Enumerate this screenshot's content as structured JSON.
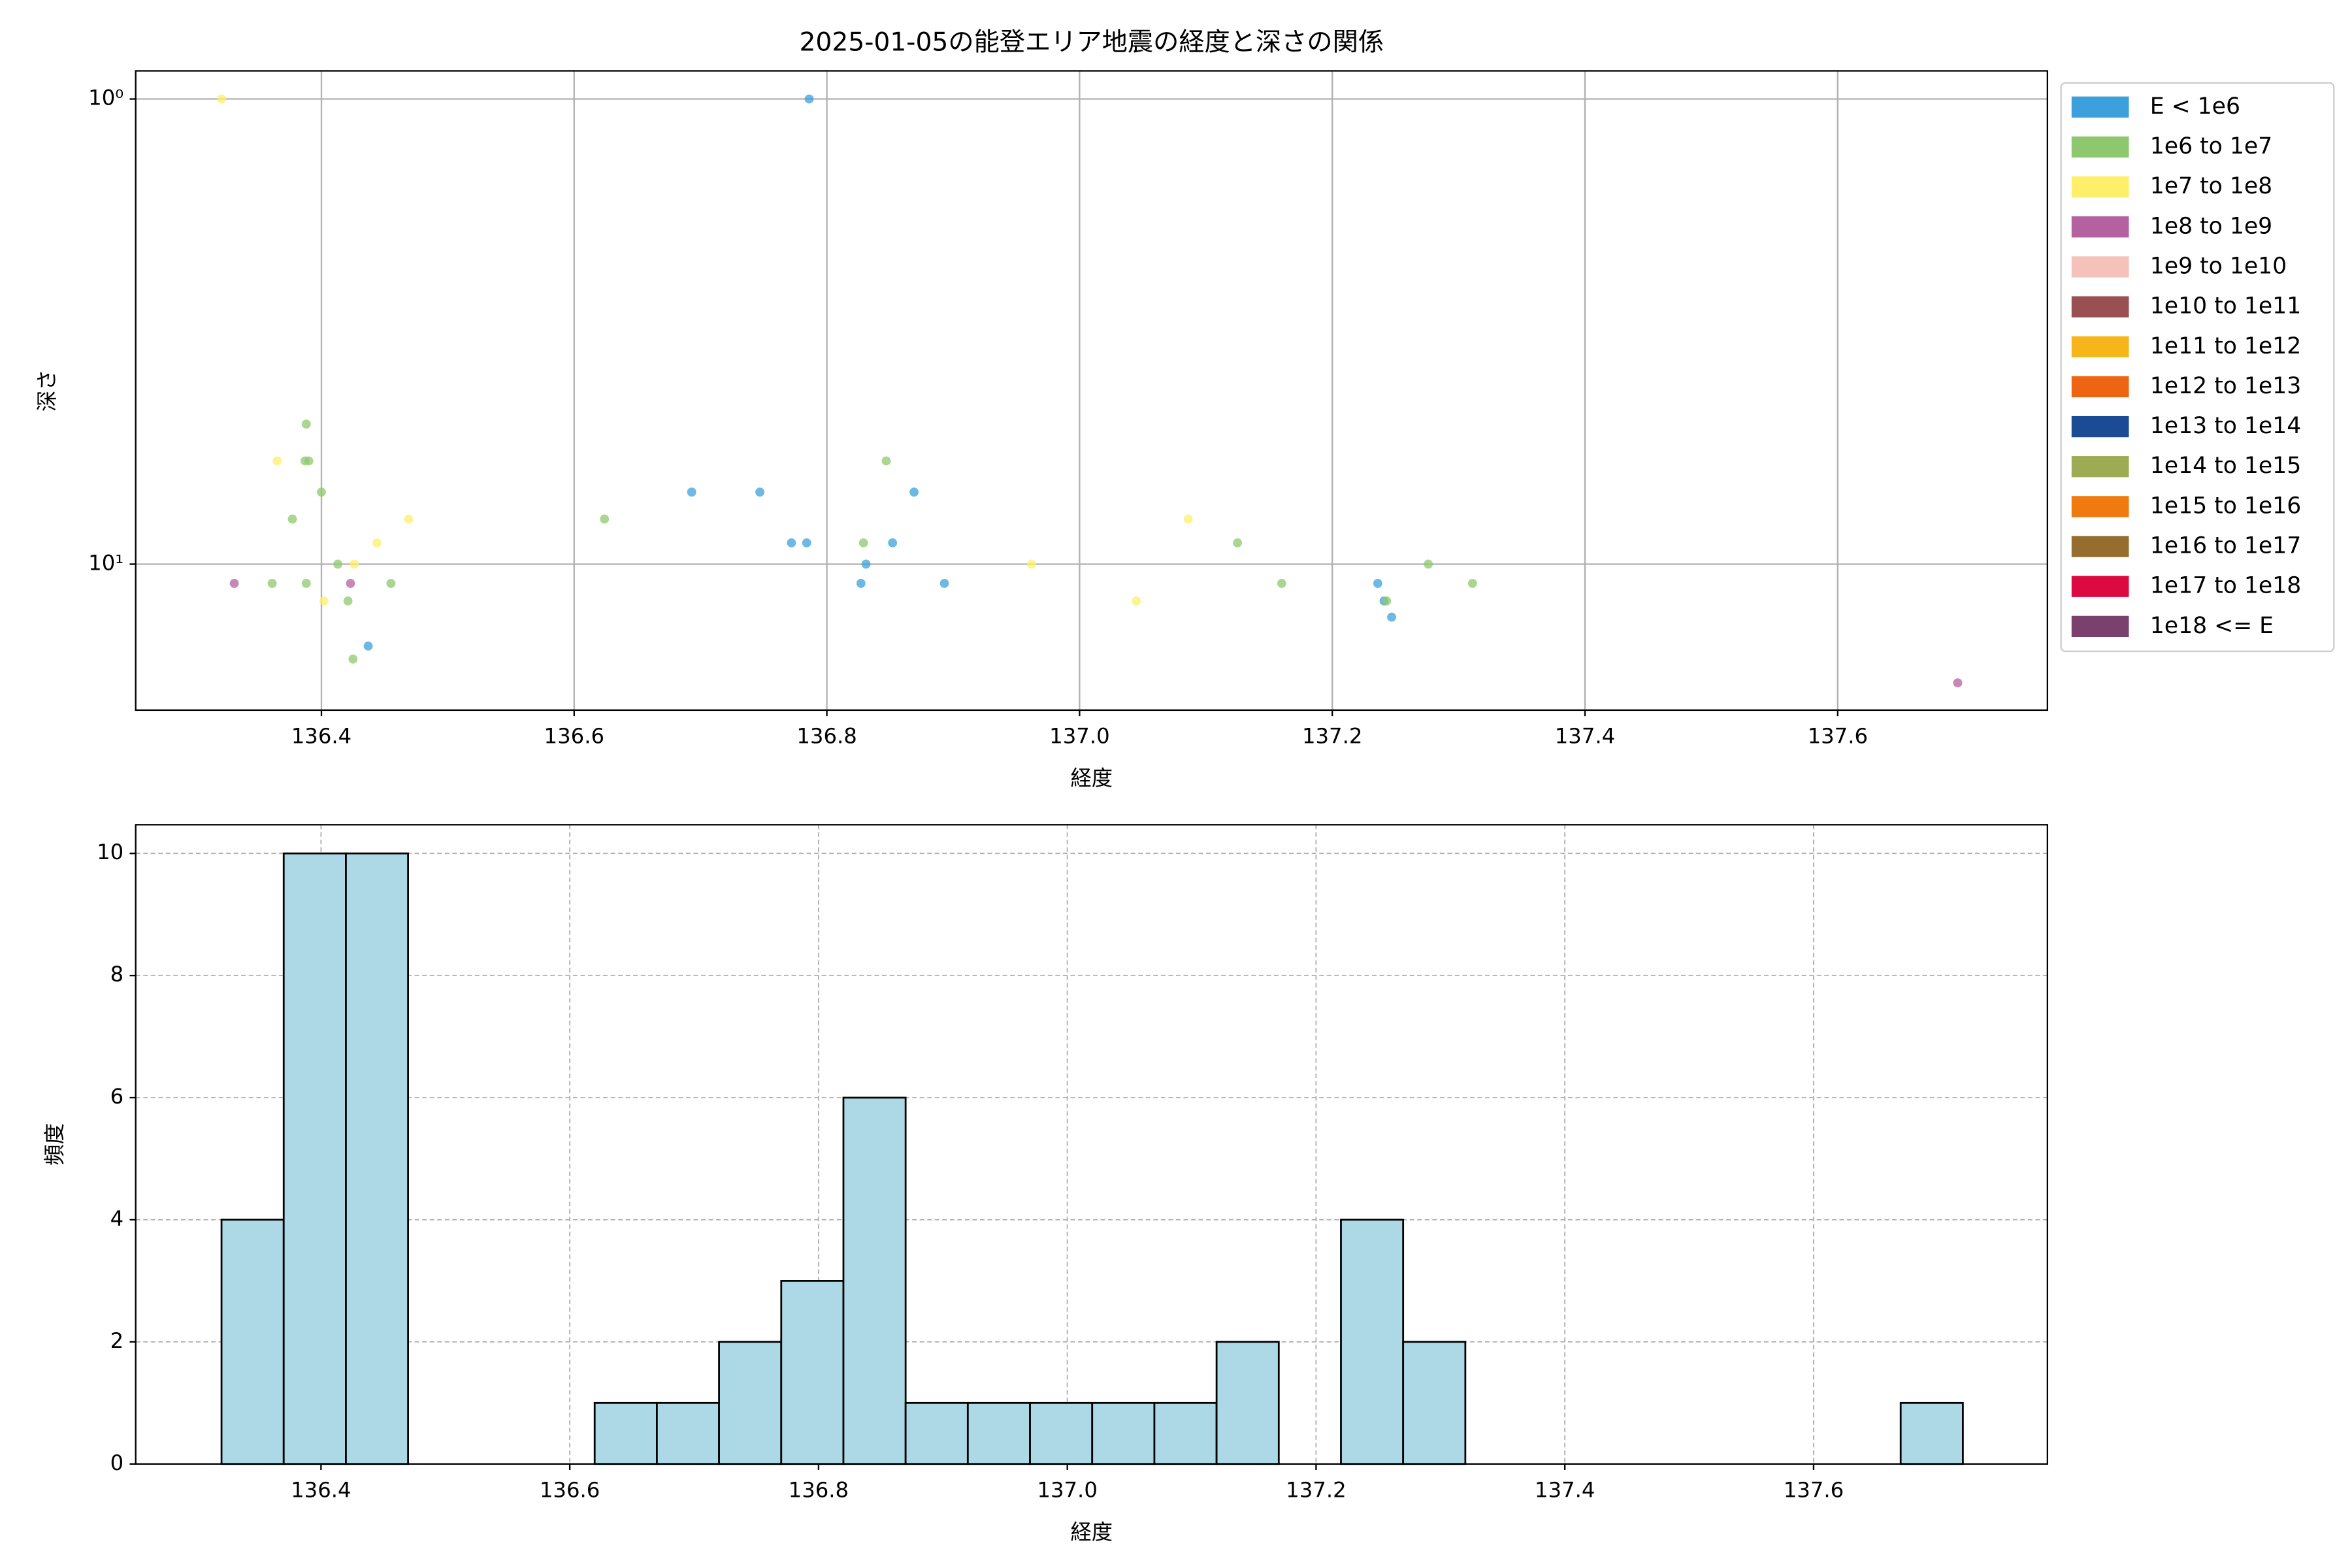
{
  "chart_data": [
    {
      "type": "scatter",
      "title": "2025-01-05の能登エリア地震の経度と深さの関係",
      "xlabel": "経度",
      "ylabel": "深さ",
      "xlim": [
        136.253,
        137.766
      ],
      "xticks": [
        136.4,
        136.6,
        136.8,
        {
          "value": 137,
          "label": "137.0"
        },
        137.2,
        137.4,
        137.6
      ],
      "ylim": [
        0.87,
        20.6
      ],
      "yscale": "log",
      "y_inverted": true,
      "yticks": [
        {
          "value": 1,
          "label": "10⁰"
        },
        {
          "value": 10,
          "label": "10¹"
        }
      ],
      "grid": true,
      "legend": "outside right",
      "series": [
        {
          "name": "E < 1e6",
          "color": "#3ca0dc",
          "x": [
            136.786,
            136.437,
            136.693,
            136.747,
            136.772,
            136.784,
            136.852,
            136.869,
            136.831,
            136.827,
            136.893,
            137.236,
            137.241,
            137.247
          ],
          "y": [
            1,
            15,
            7,
            7,
            9,
            9,
            9,
            7,
            10,
            11,
            11,
            11,
            12,
            13
          ]
        },
        {
          "name": "1e6 to 1e7",
          "color": "#8dc86e",
          "x": [
            136.388,
            136.387,
            136.39,
            136.4,
            136.377,
            136.413,
            136.361,
            136.388,
            136.455,
            136.421,
            136.425,
            136.624,
            136.847,
            136.829,
            137.125,
            137.16,
            137.243,
            137.276,
            137.311
          ],
          "y": [
            5,
            6,
            6,
            7,
            8,
            10,
            11,
            11,
            11,
            12,
            16,
            8,
            6,
            9,
            9,
            11,
            12,
            10,
            11
          ]
        },
        {
          "name": "1e7 to 1e8",
          "color": "#fdef6a",
          "x": [
            136.321,
            136.365,
            136.469,
            136.444,
            136.426,
            136.402,
            136.962,
            137.045,
            137.086
          ],
          "y": [
            1,
            6,
            8,
            9,
            10,
            12,
            10,
            12,
            8
          ]
        },
        {
          "name": "1e8 to 1e9",
          "color": "#b5609f",
          "x": [
            136.331,
            136.423,
            137.695
          ],
          "y": [
            11,
            11,
            18
          ]
        },
        {
          "name": "1e9 to 1e10",
          "color": "#f5c2bb",
          "x": [],
          "y": []
        },
        {
          "name": "1e10 to 1e11",
          "color": "#9a5050",
          "x": [],
          "y": []
        },
        {
          "name": "1e11 to 1e12",
          "color": "#f6b51a",
          "x": [],
          "y": []
        },
        {
          "name": "1e12 to 1e13",
          "color": "#ee6412",
          "x": [],
          "y": []
        },
        {
          "name": "1e13 to 1e14",
          "color": "#1b4b94",
          "x": [],
          "y": []
        },
        {
          "name": "1e14 to 1e15",
          "color": "#9dab52",
          "x": [],
          "y": []
        },
        {
          "name": "1e15 to 1e16",
          "color": "#ef7a10",
          "x": [],
          "y": []
        },
        {
          "name": "1e16 to 1e17",
          "color": "#956d2f",
          "x": [],
          "y": []
        },
        {
          "name": "1e17 to 1e18",
          "color": "#dc0a40",
          "x": [],
          "y": []
        },
        {
          "name": "1e18 <= E",
          "color": "#7a406e",
          "x": [],
          "y": []
        }
      ]
    },
    {
      "type": "histogram",
      "xlabel": "経度",
      "ylabel": "頻度",
      "xlim": [
        136.251,
        137.788
      ],
      "xticks": [
        136.4,
        136.6,
        136.8,
        {
          "value": 137,
          "label": "137.0"
        },
        137.2,
        137.4,
        137.6
      ],
      "ylim": [
        0,
        10.47
      ],
      "yticks": [
        0,
        2,
        4,
        6,
        8,
        10
      ],
      "grid": true,
      "grid_style": "dashed",
      "color": "#add8e6",
      "edgecolor": "#000000",
      "bins": [
        136.32,
        136.37,
        136.42,
        136.47,
        136.52,
        136.57,
        136.62,
        136.67,
        136.72,
        136.77,
        136.82,
        136.87,
        136.92,
        136.97,
        137.02,
        137.07,
        137.12,
        137.17,
        137.22,
        137.27,
        137.32,
        137.37,
        137.42,
        137.47,
        137.52,
        137.57,
        137.62,
        137.67,
        137.72
      ],
      "counts": [
        4,
        10,
        10,
        0,
        0,
        0,
        1,
        1,
        2,
        3,
        6,
        1,
        1,
        1,
        1,
        1,
        2,
        0,
        4,
        2,
        0,
        0,
        0,
        0,
        0,
        0,
        0,
        1
      ]
    }
  ]
}
